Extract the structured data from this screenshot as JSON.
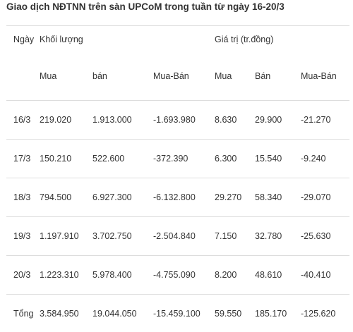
{
  "title": "Giao dịch NĐTNN trên sàn UPCoM trong tuần từ ngày 16-20/3",
  "header": {
    "day": "Ngày",
    "volume_group": "Khối lượng",
    "value_group": "Giá trị (tr.đồng)"
  },
  "subheader": {
    "vol_buy": "Mua",
    "vol_sell": "bán",
    "vol_net": "Mua-Bán",
    "val_buy": "Mua",
    "val_sell": "Bán",
    "val_net": "Mua-Bán"
  },
  "rows": [
    [
      "16/3",
      "219.020",
      "1.913.000",
      "-1.693.980",
      "8.630",
      "29.900",
      "-21.270"
    ],
    [
      "17/3",
      "150.210",
      "522.600",
      "-372.390",
      "6.300",
      "15.540",
      "-9.240"
    ],
    [
      "18/3",
      "794.500",
      "6.927.300",
      "-6.132.800",
      "29.270",
      "58.340",
      "-29.070"
    ],
    [
      "19/3",
      "1.197.910",
      "3.702.750",
      "-2.504.840",
      "7.150",
      "32.780",
      "-25.630"
    ],
    [
      "20/3",
      "1.223.310",
      "5.978.400",
      "-4.755.090",
      "8.200",
      "48.610",
      "-40.410"
    ]
  ],
  "total": [
    "Tổng",
    "3.584.950",
    "19.044.050",
    "-15.459.100",
    "59.550",
    "185.170",
    "-125.620"
  ]
}
